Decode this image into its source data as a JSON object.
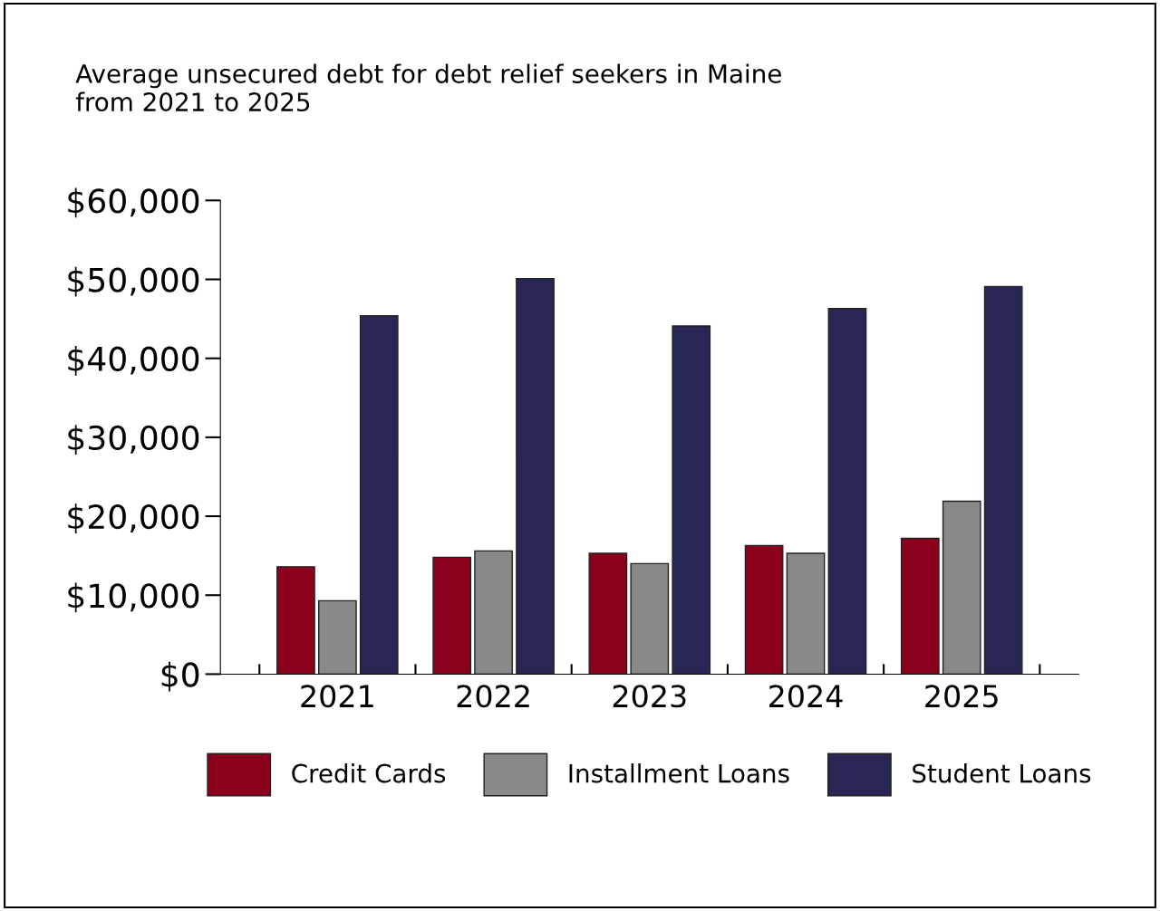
{
  "chart_data": {
    "type": "bar",
    "title": "Average unsecured debt for debt relief seekers in Maine\nfrom 2021 to 2025",
    "categories": [
      "2021",
      "2022",
      "2023",
      "2024",
      "2025"
    ],
    "series": [
      {
        "name": "Credit Cards",
        "color": "#8b001a",
        "values": [
          13600,
          14800,
          15300,
          16300,
          17200
        ]
      },
      {
        "name": "Installment Loans",
        "color": "#898989",
        "values": [
          9300,
          15600,
          14000,
          15300,
          21900
        ]
      },
      {
        "name": "Student Loans",
        "color": "#272655",
        "values": [
          45400,
          50100,
          44100,
          46300,
          49100
        ]
      }
    ],
    "ylim": [
      0,
      60000
    ],
    "yticks": [
      {
        "value": 0,
        "label": "$0"
      },
      {
        "value": 10000,
        "label": "$10,000"
      },
      {
        "value": 20000,
        "label": "$20,000"
      },
      {
        "value": 30000,
        "label": "$30,000"
      },
      {
        "value": 40000,
        "label": "$40,000"
      },
      {
        "value": 50000,
        "label": "$50,000"
      },
      {
        "value": 60000,
        "label": "$60,000"
      }
    ],
    "grid": false,
    "legend": "bottom"
  }
}
